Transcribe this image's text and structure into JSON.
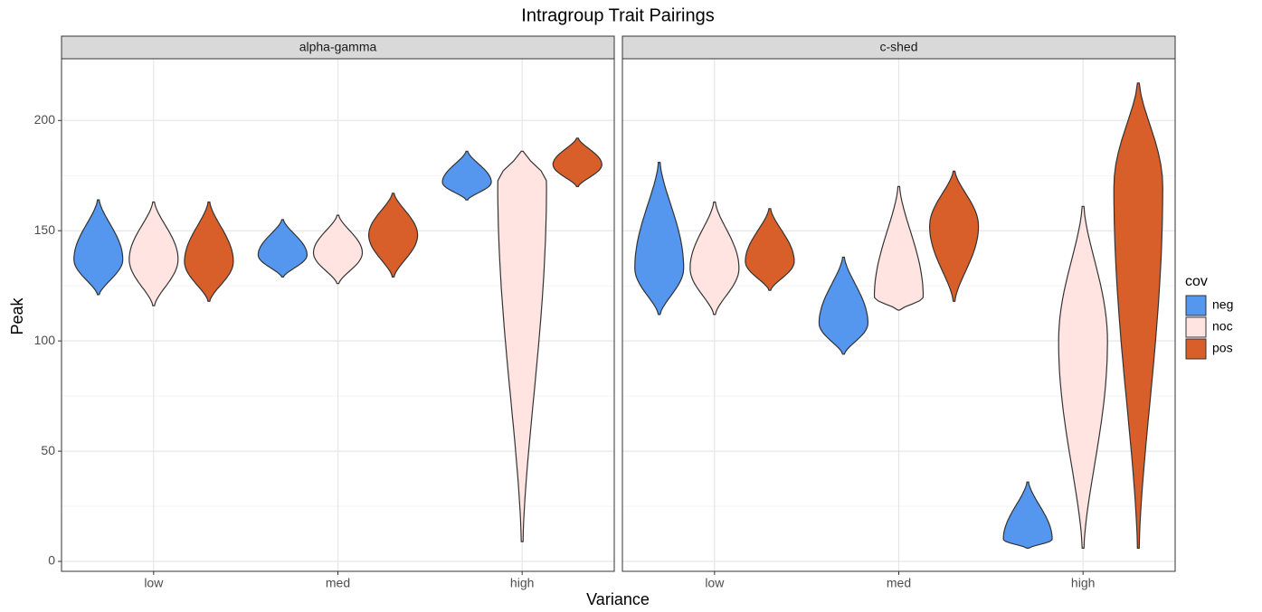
{
  "chart_data": {
    "type": "violin",
    "title": "Intragroup Trait Pairings",
    "x_label": "Variance",
    "y_label": "Peak",
    "facets": [
      "alpha-gamma",
      "c-shed"
    ],
    "categories": [
      "low",
      "med",
      "high"
    ],
    "legend_title": "cov",
    "ylim": [
      -4.5,
      228
    ],
    "yticks": [
      0,
      50,
      100,
      150,
      200
    ],
    "minor_yticks": [
      25,
      75,
      125,
      175
    ],
    "grid": true,
    "series": [
      {
        "name": "neg",
        "color": "#5596ee",
        "panels": [
          {
            "min": [
              121,
              129,
              164
            ],
            "mode": [
              137,
              139,
              172
            ],
            "max": [
              164,
              155,
              186
            ]
          },
          {
            "min": [
              112,
              94,
              6
            ],
            "mode": [
              133,
              108,
              10
            ],
            "max": [
              181,
              138,
              36
            ]
          }
        ]
      },
      {
        "name": "noc",
        "color": "#ffe4e1",
        "panels": [
          {
            "min": [
              116,
              126,
              9
            ],
            "mode": [
              137,
              140,
              172
            ],
            "max": [
              163,
              157,
              186
            ]
          },
          {
            "min": [
              112,
              114,
              6
            ],
            "mode": [
              133,
              120,
              100
            ],
            "max": [
              163,
              170,
              161
            ]
          }
        ]
      },
      {
        "name": "pos",
        "color": "#d95f2a",
        "panels": [
          {
            "min": [
              118,
              129,
              170
            ],
            "mode": [
              136,
              148,
              180
            ],
            "max": [
              163,
              167,
              192
            ]
          },
          {
            "min": [
              123,
              118,
              6
            ],
            "mode": [
              136,
              152,
              170
            ],
            "max": [
              160,
              177,
              217
            ]
          }
        ]
      }
    ]
  }
}
